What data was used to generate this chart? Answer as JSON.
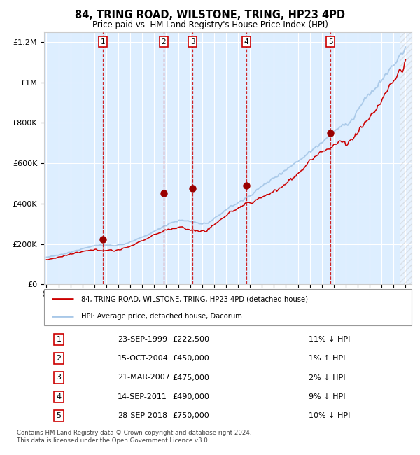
{
  "title": "84, TRING ROAD, WILSTONE, TRING, HP23 4PD",
  "subtitle": "Price paid vs. HM Land Registry's House Price Index (HPI)",
  "bg_color": "#ddeeff",
  "legend_line1": "84, TRING ROAD, WILSTONE, TRING, HP23 4PD (detached house)",
  "legend_line2": "HPI: Average price, detached house, Dacorum",
  "footer": "Contains HM Land Registry data © Crown copyright and database right 2024.\nThis data is licensed under the Open Government Licence v3.0.",
  "transactions": [
    {
      "num": 1,
      "date": "23-SEP-1999",
      "price": 222500,
      "pct": "11%",
      "dir": "↓",
      "x": 1999.73
    },
    {
      "num": 2,
      "date": "15-OCT-2004",
      "price": 450000,
      "pct": "1%",
      "dir": "↑",
      "x": 2004.79
    },
    {
      "num": 3,
      "date": "21-MAR-2007",
      "price": 475000,
      "pct": "2%",
      "dir": "↓",
      "x": 2007.22
    },
    {
      "num": 4,
      "date": "14-SEP-2011",
      "price": 490000,
      "pct": "9%",
      "dir": "↓",
      "x": 2011.71
    },
    {
      "num": 5,
      "date": "28-SEP-2018",
      "price": 750000,
      "pct": "10%",
      "dir": "↓",
      "x": 2018.74
    }
  ],
  "hpi_color": "#a8c8e8",
  "price_color": "#cc0000",
  "marker_color": "#990000",
  "dashed_color": "#cc0000",
  "grid_color": "#ffffff",
  "ylim": [
    0,
    1250000
  ],
  "xlim_start": 1994.8,
  "xlim_end": 2025.5,
  "yticks": [
    0,
    200000,
    400000,
    600000,
    800000,
    1000000,
    1200000
  ]
}
